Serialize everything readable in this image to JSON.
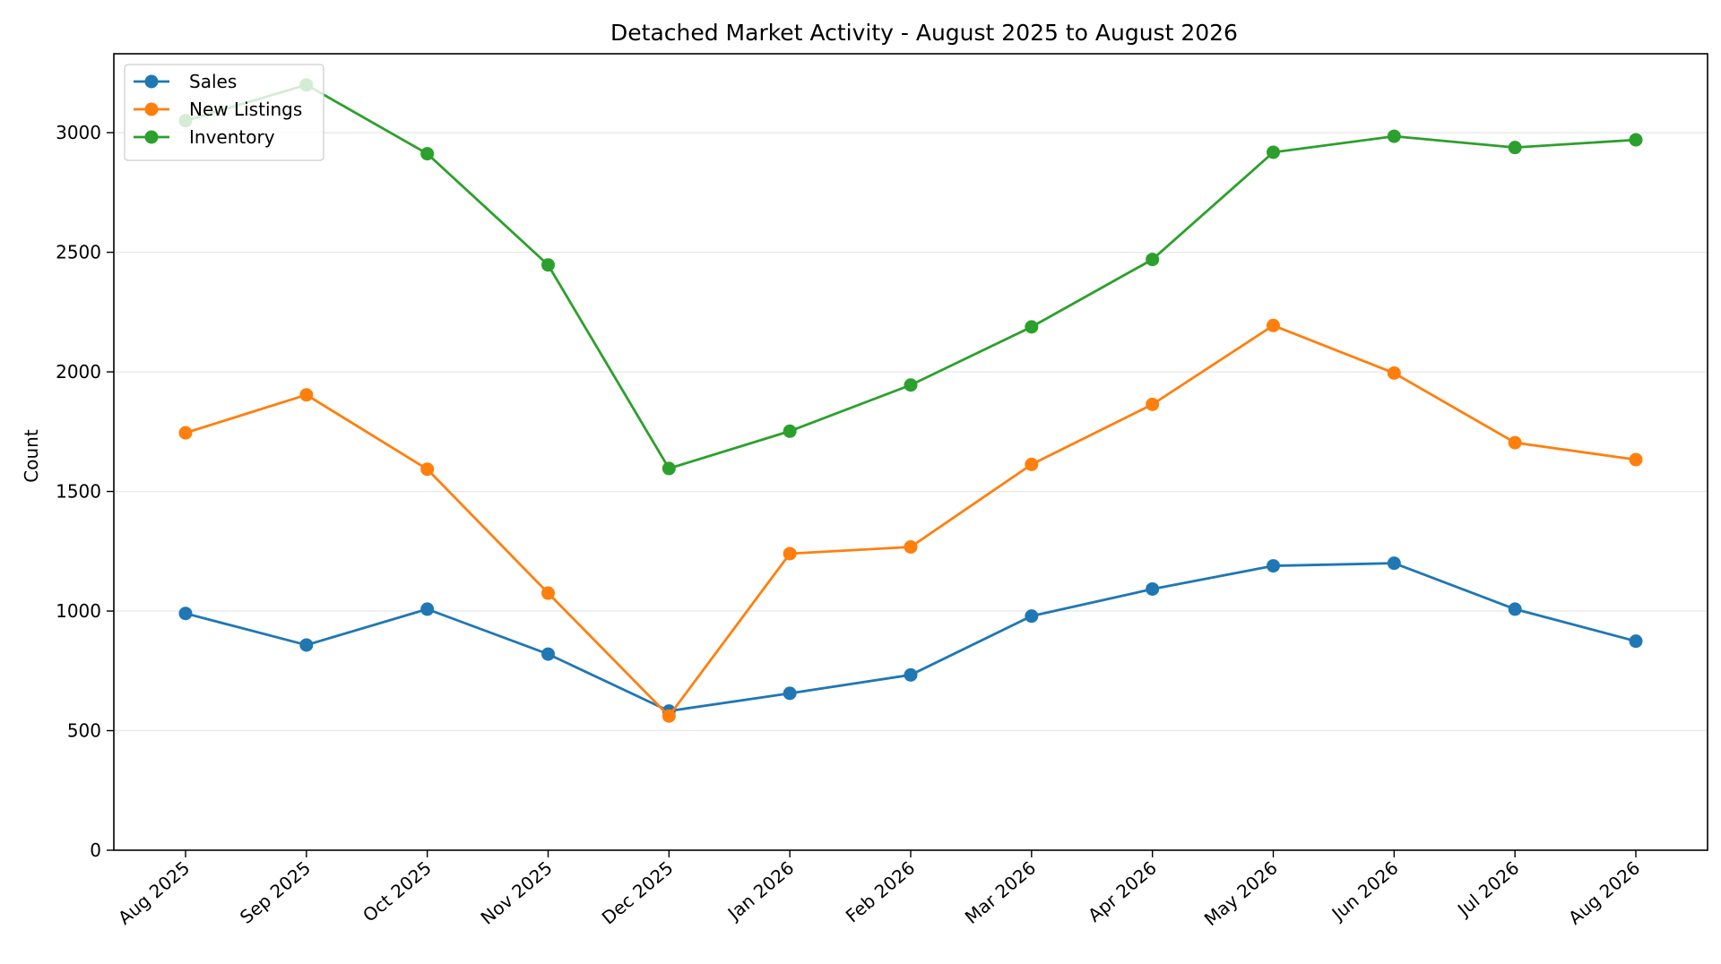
{
  "chart_data": {
    "type": "line",
    "title": "Detached Market Activity - August 2025 to August 2026",
    "xlabel": "",
    "ylabel": "Count",
    "categories": [
      "Aug 2025",
      "Sep 2025",
      "Oct 2025",
      "Nov 2025",
      "Dec 2025",
      "Jan 2026",
      "Feb 2026",
      "Mar 2026",
      "Apr 2026",
      "May 2026",
      "Jun 2026",
      "Jul 2026",
      "Aug 2026"
    ],
    "ylim": [
      0,
      3330
    ],
    "yticks": [
      0,
      500,
      1000,
      1500,
      2000,
      2500,
      3000
    ],
    "grid": "horizontal",
    "legend_position": "top-left",
    "series": [
      {
        "name": "Sales",
        "color": "#1f77b4",
        "values": [
          990,
          858,
          1008,
          820,
          582,
          656,
          733,
          979,
          1092,
          1189,
          1200,
          1008,
          874
        ]
      },
      {
        "name": "New Listings",
        "color": "#ff7f0e",
        "values": [
          1745,
          1904,
          1593,
          1075,
          561,
          1240,
          1268,
          1613,
          1864,
          2194,
          1995,
          1704,
          1633
        ]
      },
      {
        "name": "Inventory",
        "color": "#2ca02c",
        "values": [
          3050,
          3200,
          2912,
          2447,
          1596,
          1752,
          1945,
          2188,
          2470,
          2918,
          2985,
          2938,
          2970
        ]
      }
    ]
  }
}
